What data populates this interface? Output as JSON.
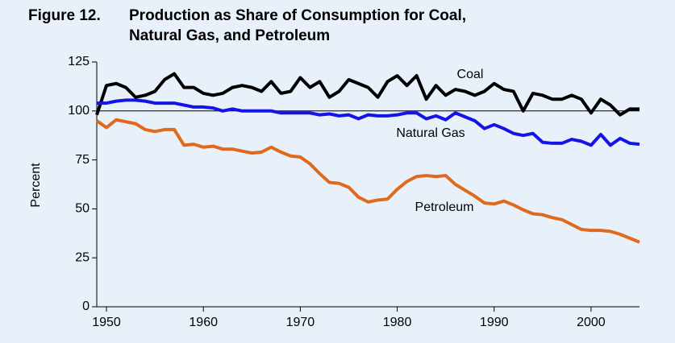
{
  "chart_data": {
    "type": "line",
    "figure_label": "Figure 12.",
    "title": [
      "Production as Share of Consumption for Coal,",
      "Natural Gas, and Petroleum"
    ],
    "y_label": "Percent",
    "x": [
      1949,
      1950,
      1951,
      1952,
      1953,
      1954,
      1955,
      1956,
      1957,
      1958,
      1959,
      1960,
      1961,
      1962,
      1963,
      1964,
      1965,
      1966,
      1967,
      1968,
      1969,
      1970,
      1971,
      1972,
      1973,
      1974,
      1975,
      1976,
      1977,
      1978,
      1979,
      1980,
      1981,
      1982,
      1983,
      1984,
      1985,
      1986,
      1987,
      1988,
      1989,
      1990,
      1991,
      1992,
      1993,
      1994,
      1995,
      1996,
      1997,
      1998,
      1999,
      2000,
      2001,
      2002,
      2003,
      2004,
      2005
    ],
    "series": [
      {
        "name": "Coal",
        "color": "#000000",
        "values": [
          98,
          113,
          114,
          112,
          107,
          108,
          110,
          116,
          119,
          112,
          112,
          109,
          108,
          109,
          112,
          113,
          112,
          110,
          115,
          109,
          110,
          117,
          112,
          115,
          107,
          110,
          116,
          114,
          112,
          107,
          115,
          118,
          113,
          118,
          106,
          113,
          108,
          111,
          110,
          108,
          110,
          114,
          111,
          110,
          100,
          109,
          108,
          106,
          106,
          108,
          106,
          99,
          106,
          103,
          98,
          101,
          101
        ]
      },
      {
        "name": "Natural Gas",
        "color": "#1414e6",
        "values": [
          104,
          104,
          105,
          105.5,
          105.5,
          105,
          104,
          104,
          104,
          103,
          102,
          102,
          101.5,
          100,
          101,
          100,
          100,
          100,
          100,
          99,
          99,
          99,
          99,
          98,
          98.5,
          97.5,
          98,
          96,
          98,
          97.5,
          97.5,
          98,
          99,
          99,
          96,
          97.5,
          95.5,
          99,
          97,
          95,
          91,
          93,
          91,
          88.5,
          87.5,
          88.5,
          84,
          83.5,
          83.5,
          85.5,
          84.5,
          82.5,
          88,
          82.5,
          86,
          83.5,
          83
        ]
      },
      {
        "name": "Petroleum",
        "color": "#e0691c",
        "values": [
          95,
          91.5,
          95.5,
          94.5,
          93.5,
          90.5,
          89.5,
          90.5,
          90.5,
          82.5,
          83,
          81.5,
          82,
          80.5,
          80.5,
          79.5,
          78.5,
          79,
          81.5,
          79,
          77,
          76.5,
          73,
          68,
          63.5,
          63,
          61,
          56,
          53.5,
          54.5,
          55,
          60,
          64,
          66.5,
          67,
          66.5,
          67,
          62.5,
          59.5,
          56.5,
          53,
          52.5,
          54,
          52,
          49.5,
          47.5,
          47,
          45.5,
          44.5,
          42,
          39.5,
          39,
          39,
          38.5,
          37,
          35,
          33
        ]
      }
    ],
    "reference_line": 100,
    "xlim": [
      1949,
      2005
    ],
    "xticks": [
      1950,
      1960,
      1970,
      1980,
      1990,
      2000
    ],
    "ylim": [
      0,
      125
    ],
    "yticks": [
      0,
      25,
      50,
      75,
      100,
      125
    ],
    "grid": false
  }
}
